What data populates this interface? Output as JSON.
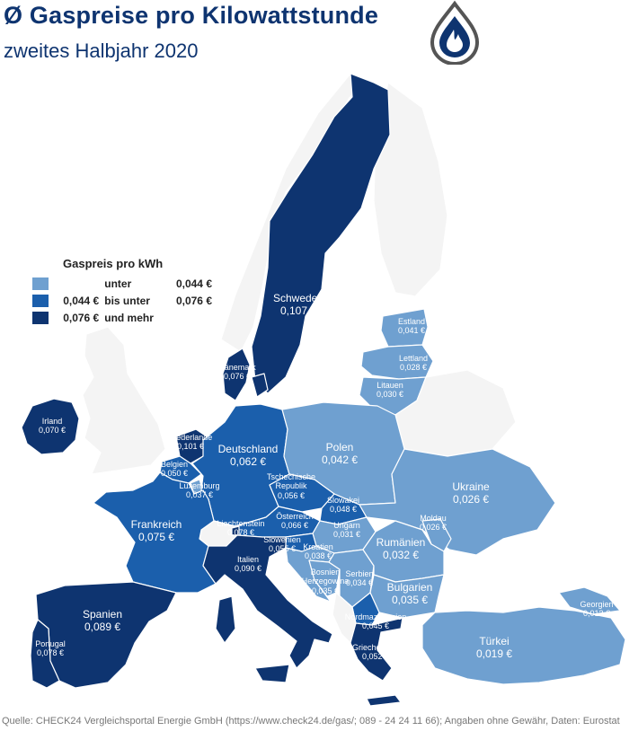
{
  "header": {
    "title": "Ø Gaspreise pro Kilowattstunde",
    "subtitle": "zweites Halbjahr 2020"
  },
  "colors": {
    "low": "#6fa0d0",
    "mid": "#1b5fac",
    "high": "#0e3470",
    "brand": "#0e3470",
    "logo_ring": "#555555"
  },
  "logo": {
    "icon": "flame-drop-icon"
  },
  "legend": {
    "title": "Gaspreis pro kWh",
    "rows": [
      {
        "from": "",
        "mid": "unter",
        "to": "0,044 €"
      },
      {
        "from": "0,044 €",
        "mid": "bis unter",
        "to": "0,076 €"
      },
      {
        "from": "0,076 €",
        "mid": "und mehr",
        "to": ""
      }
    ]
  },
  "countries": [
    {
      "name": "Schweden",
      "price": "0,107 €"
    },
    {
      "name": "Estland",
      "price": "0,041 €"
    },
    {
      "name": "Lettland",
      "price": "0,028 €"
    },
    {
      "name": "Litauen",
      "price": "0,030 €"
    },
    {
      "name": "Dänemark",
      "price": "0,076 €"
    },
    {
      "name": "Irland",
      "price": "0,070 €"
    },
    {
      "name": "Niederlande",
      "price": "0,101 €"
    },
    {
      "name": "Belgien",
      "price": "0,050 €"
    },
    {
      "name": "Luxemburg",
      "price": "0,037 €"
    },
    {
      "name": "Deutschland",
      "price": "0,062 €"
    },
    {
      "name": "Polen",
      "price": "0,042 €"
    },
    {
      "name": "Tschechische Republik",
      "price": "0,056 €"
    },
    {
      "name": "Slowakei",
      "price": "0,048 €"
    },
    {
      "name": "Ukraine",
      "price": "0,026 €"
    },
    {
      "name": "Österreich",
      "price": "0,066 €"
    },
    {
      "name": "Ungarn",
      "price": "0,031 €"
    },
    {
      "name": "Moldau",
      "price": "0,026 €"
    },
    {
      "name": "Frankreich",
      "price": "0,075 €"
    },
    {
      "name": "Liechtenstein",
      "price": "0,078 €"
    },
    {
      "name": "Slowenien",
      "price": "0,055 €"
    },
    {
      "name": "Kroatien",
      "price": "0,038 €"
    },
    {
      "name": "Rumänien",
      "price": "0,032 €"
    },
    {
      "name": "Italien",
      "price": "0,090 €"
    },
    {
      "name": "Bosnien Herzegowina",
      "price": "0,035 €"
    },
    {
      "name": "Serbien",
      "price": "0,034 €"
    },
    {
      "name": "Bulgarien",
      "price": "0,035 €"
    },
    {
      "name": "Georgien",
      "price": "0,013 €"
    },
    {
      "name": "Nordmazedonien",
      "price": "0,045 €"
    },
    {
      "name": "Spanien",
      "price": "0,089 €"
    },
    {
      "name": "Portugal",
      "price": "0,078 €"
    },
    {
      "name": "Türkei",
      "price": "0,019 €"
    },
    {
      "name": "Griechenland",
      "price": "0,052 €"
    }
  ],
  "footer": {
    "source": "Quelle: CHECK24 Vergleichsportal Energie GmbH (https://www.check24.de/gas/; 089 - 24 24 11 66); Angaben ohne Gewähr, Daten: Eurostat"
  }
}
